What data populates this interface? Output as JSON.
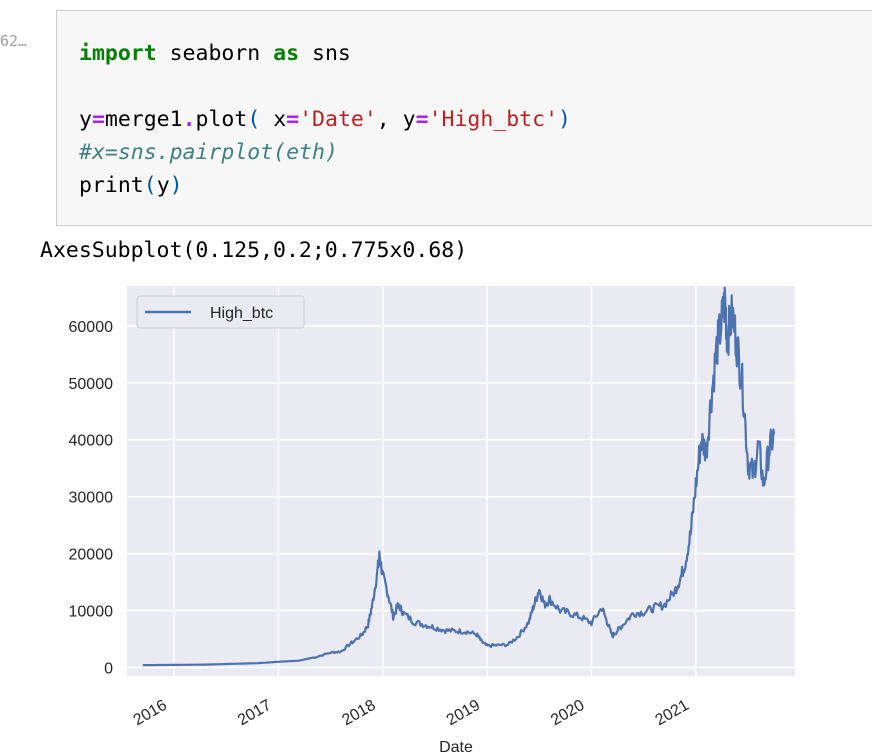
{
  "cell": {
    "prompt": "62…",
    "code_lines": [
      [
        {
          "t": "import",
          "c": "kw"
        },
        {
          "t": " seaborn ",
          "c": ""
        },
        {
          "t": "as",
          "c": "kw"
        },
        {
          "t": " sns",
          "c": ""
        }
      ],
      [],
      [
        {
          "t": "y",
          "c": ""
        },
        {
          "t": "=",
          "c": "op"
        },
        {
          "t": "merge1",
          "c": ""
        },
        {
          "t": ".",
          "c": "op"
        },
        {
          "t": "plot",
          "c": ""
        },
        {
          "t": "(",
          "c": "paren"
        },
        {
          "t": " x",
          "c": ""
        },
        {
          "t": "=",
          "c": "op"
        },
        {
          "t": "'Date'",
          "c": "str"
        },
        {
          "t": ", y",
          "c": ""
        },
        {
          "t": "=",
          "c": "op"
        },
        {
          "t": "'High_btc'",
          "c": "str"
        },
        {
          "t": ")",
          "c": "paren"
        }
      ],
      [
        {
          "t": "#x=sns.pairplot(eth)",
          "c": "cmt"
        }
      ],
      [
        {
          "t": "print",
          "c": ""
        },
        {
          "t": "(",
          "c": "paren"
        },
        {
          "t": "y",
          "c": ""
        },
        {
          "t": ")",
          "c": "paren"
        }
      ]
    ]
  },
  "output": {
    "text": "AxesSubplot(0.125,0.2;0.775x0.68)"
  },
  "chart_data": {
    "type": "line",
    "xlabel": "Date",
    "ylabel": "",
    "xlim": [
      2015.55,
      2021.95
    ],
    "ylim": [
      -1500,
      67000
    ],
    "xticks": [
      2016,
      2017,
      2018,
      2019,
      2020,
      2021
    ],
    "xtick_labels": [
      "2016",
      "2017",
      "2018",
      "2019",
      "2020",
      "2021"
    ],
    "yticks": [
      0,
      10000,
      20000,
      30000,
      40000,
      50000,
      60000
    ],
    "ytick_labels": [
      "0",
      "10000",
      "20000",
      "30000",
      "40000",
      "50000",
      "60000"
    ],
    "grid": true,
    "legend": "upper-left",
    "series": [
      {
        "name": "High_btc",
        "color": "#4c72b0",
        "x": [
          2015.7,
          2016.0,
          2016.3,
          2016.5,
          2016.8,
          2017.0,
          2017.2,
          2017.35,
          2017.5,
          2017.6,
          2017.7,
          2017.8,
          2017.86,
          2017.9,
          2017.95,
          2017.97,
          2018.0,
          2018.05,
          2018.1,
          2018.15,
          2018.2,
          2018.3,
          2018.4,
          2018.5,
          2018.6,
          2018.7,
          2018.8,
          2018.9,
          2018.95,
          2019.0,
          2019.1,
          2019.2,
          2019.3,
          2019.4,
          2019.45,
          2019.5,
          2019.55,
          2019.6,
          2019.7,
          2019.8,
          2019.9,
          2020.0,
          2020.1,
          2020.15,
          2020.2,
          2020.25,
          2020.3,
          2020.4,
          2020.5,
          2020.6,
          2020.7,
          2020.8,
          2020.85,
          2020.9,
          2020.95,
          2021.0,
          2021.05,
          2021.1,
          2021.15,
          2021.2,
          2021.25,
          2021.28,
          2021.3,
          2021.35,
          2021.4,
          2021.45,
          2021.5,
          2021.55,
          2021.6,
          2021.65,
          2021.7,
          2021.75
        ],
        "y": [
          400,
          450,
          500,
          600,
          750,
          1000,
          1200,
          1800,
          2600,
          2800,
          4300,
          5700,
          7500,
          11000,
          17000,
          19800,
          16000,
          13000,
          9000,
          11000,
          9500,
          8000,
          7500,
          7000,
          6500,
          6400,
          6300,
          5800,
          4500,
          3800,
          3900,
          4000,
          5500,
          8000,
          11000,
          13800,
          11000,
          12000,
          10000,
          9500,
          8800,
          7800,
          10500,
          8000,
          5500,
          6500,
          7500,
          9500,
          9700,
          10500,
          11000,
          13500,
          15500,
          18500,
          23500,
          32000,
          40000,
          38000,
          48000,
          56000,
          61000,
          64500,
          58000,
          62000,
          56000,
          49000,
          36000,
          34000,
          39000,
          32000,
          38000,
          41000
        ]
      }
    ]
  }
}
